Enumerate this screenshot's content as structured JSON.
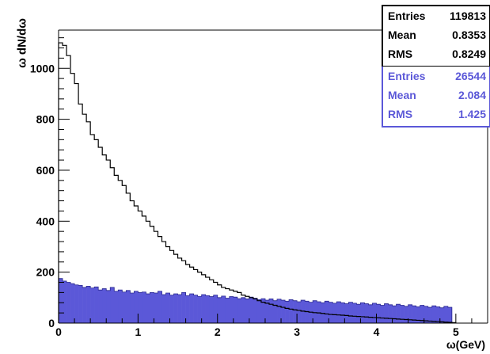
{
  "chart_data": {
    "type": "histogram",
    "xlabel": "ω(GeV)",
    "ylabel": "ω dN/dω",
    "xlim": [
      0,
      5.4
    ],
    "ylim": [
      0,
      1150
    ],
    "x_ticks": [
      "0",
      "1",
      "2",
      "3",
      "4",
      "5"
    ],
    "y_ticks": [
      "0",
      "200",
      "400",
      "600",
      "800",
      "1000"
    ],
    "bin_width": 0.05,
    "series": [
      {
        "style": "line",
        "color": "#000000",
        "values": [
          1100,
          1090,
          1050,
          980,
          940,
          860,
          820,
          790,
          740,
          720,
          690,
          660,
          640,
          610,
          580,
          560,
          540,
          510,
          480,
          460,
          440,
          420,
          400,
          380,
          360,
          340,
          320,
          300,
          285,
          270,
          255,
          245,
          230,
          220,
          210,
          200,
          190,
          180,
          170,
          160,
          150,
          140,
          135,
          130,
          125,
          120,
          110,
          105,
          100,
          95,
          88,
          82,
          78,
          74,
          70,
          66,
          62,
          58,
          55,
          52,
          50,
          47,
          45,
          43,
          41,
          40,
          38,
          36,
          34,
          33,
          32,
          31,
          30,
          28,
          27,
          26,
          25,
          24,
          23,
          22,
          21,
          20,
          19,
          18,
          17,
          16,
          15,
          14,
          13,
          12,
          11,
          10,
          9,
          8,
          7,
          6,
          5,
          4,
          3,
          2
        ],
        "stats": {
          "entries_label": "Entries",
          "entries": "119813",
          "mean_label": "Mean",
          "mean": "0.8353",
          "rms_label": "RMS",
          "rms": "0.8249"
        }
      },
      {
        "style": "filled",
        "color": "#5b58d8",
        "values": [
          175,
          165,
          160,
          155,
          150,
          148,
          140,
          145,
          138,
          142,
          130,
          135,
          128,
          140,
          125,
          130,
          122,
          128,
          118,
          125,
          120,
          122,
          115,
          120,
          118,
          125,
          112,
          118,
          110,
          115,
          112,
          120,
          108,
          115,
          110,
          105,
          112,
          108,
          104,
          110,
          100,
          106,
          98,
          104,
          102,
          96,
          100,
          95,
          102,
          98,
          92,
          96,
          90,
          95,
          88,
          94,
          90,
          86,
          92,
          88,
          84,
          90,
          86,
          82,
          88,
          84,
          80,
          86,
          82,
          78,
          84,
          80,
          76,
          82,
          78,
          74,
          80,
          76,
          72,
          78,
          74,
          70,
          76,
          72,
          68,
          74,
          70,
          66,
          72,
          68,
          64,
          70,
          66,
          62,
          68,
          64,
          60,
          66,
          62,
          0
        ],
        "stats": {
          "entries_label": "Entries",
          "entries": "26544",
          "mean_label": "Mean",
          "mean": "2.084",
          "rms_label": "RMS",
          "rms": "1.425"
        }
      }
    ]
  }
}
